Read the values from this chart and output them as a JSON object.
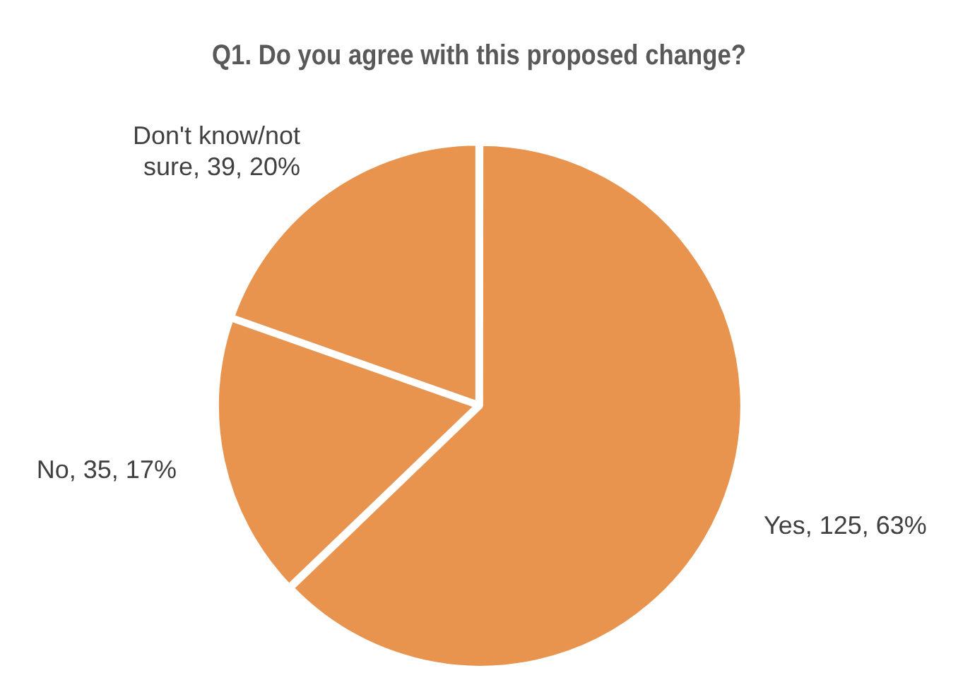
{
  "chart_data": {
    "type": "pie",
    "title": "Q1. Do you agree with this proposed change?",
    "categories": [
      "Yes",
      "No",
      "Don't know/not sure"
    ],
    "values": [
      125,
      35,
      39
    ],
    "colors": [
      "#e8944f",
      "#e8944f",
      "#e8944f"
    ],
    "value_labels": [
      "125, 63%",
      "35, 17%",
      "39, 20%"
    ],
    "legend": false
  }
}
